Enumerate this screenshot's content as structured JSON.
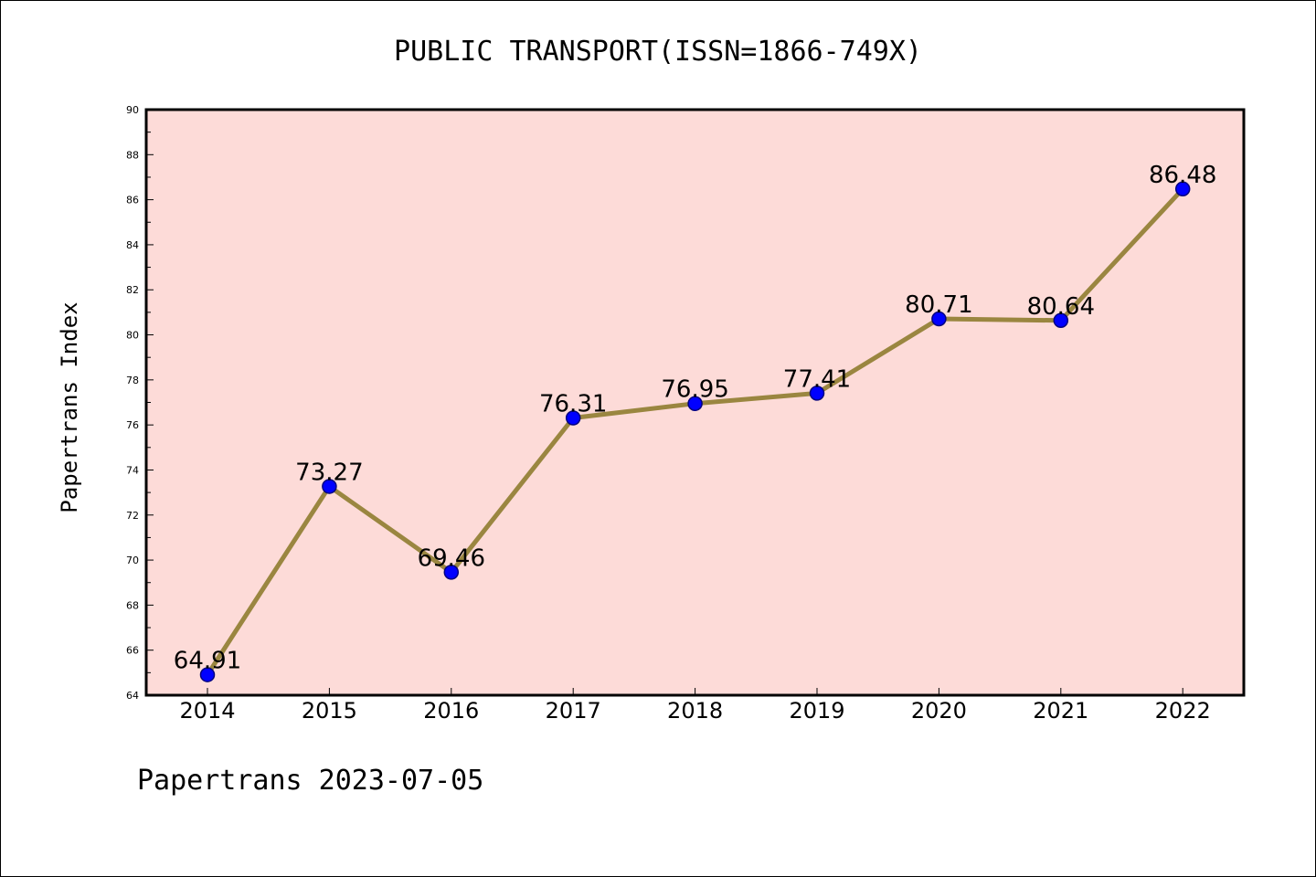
{
  "chart_data": {
    "type": "line",
    "title": "PUBLIC TRANSPORT(ISSN=1866-749X)",
    "xlabel": "",
    "ylabel": "Papertrans Index",
    "x": [
      "2014",
      "2015",
      "2016",
      "2017",
      "2018",
      "2019",
      "2020",
      "2021",
      "2022"
    ],
    "series": [
      {
        "values": [
          64.91,
          73.27,
          69.46,
          76.31,
          76.95,
          77.41,
          80.71,
          80.64,
          86.48
        ]
      }
    ],
    "data_labels": [
      "64.91",
      "73.27",
      "69.46",
      "76.31",
      "76.95",
      "77.41",
      "80.71",
      "80.64",
      "86.48"
    ],
    "ylim": [
      64,
      90
    ],
    "yticks": [
      "64",
      "66",
      "68",
      "70",
      "72",
      "74",
      "76",
      "78",
      "80",
      "82",
      "84",
      "86",
      "88",
      "90"
    ],
    "grid": false,
    "legend": "none",
    "colors": {
      "plot_background": "#fddbd8",
      "line": "#9a8640",
      "marker": "#0000ff",
      "marker_edge": "#000080",
      "axes": "#000000"
    }
  },
  "footer": "Papertrans 2023-07-05"
}
